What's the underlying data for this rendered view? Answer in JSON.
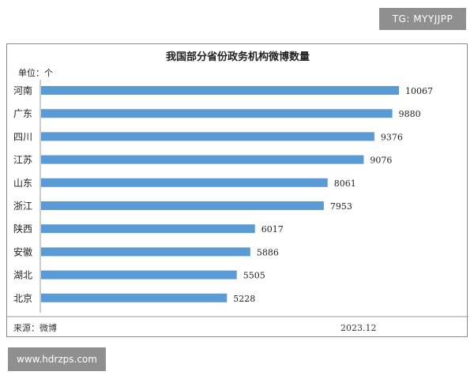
{
  "watermarks": {
    "top": "TG: MYYJJPP",
    "bottom": "www.hdrzps.com"
  },
  "chart_data": {
    "type": "bar",
    "orientation": "horizontal",
    "title": "我国部分省份政务机构微博数量",
    "unit_label": "单位：个",
    "categories": [
      "河南",
      "广东",
      "四川",
      "江苏",
      "山东",
      "浙江",
      "陕西",
      "安徽",
      "湖北",
      "北京"
    ],
    "values": [
      10067,
      9880,
      9376,
      9076,
      8061,
      7953,
      6017,
      5886,
      5505,
      5228
    ],
    "xlim": [
      0,
      11000
    ],
    "grid": false,
    "legend": "none",
    "bar_color": "#5b9bd5",
    "source": "来源：微博",
    "date": "2023.12"
  }
}
